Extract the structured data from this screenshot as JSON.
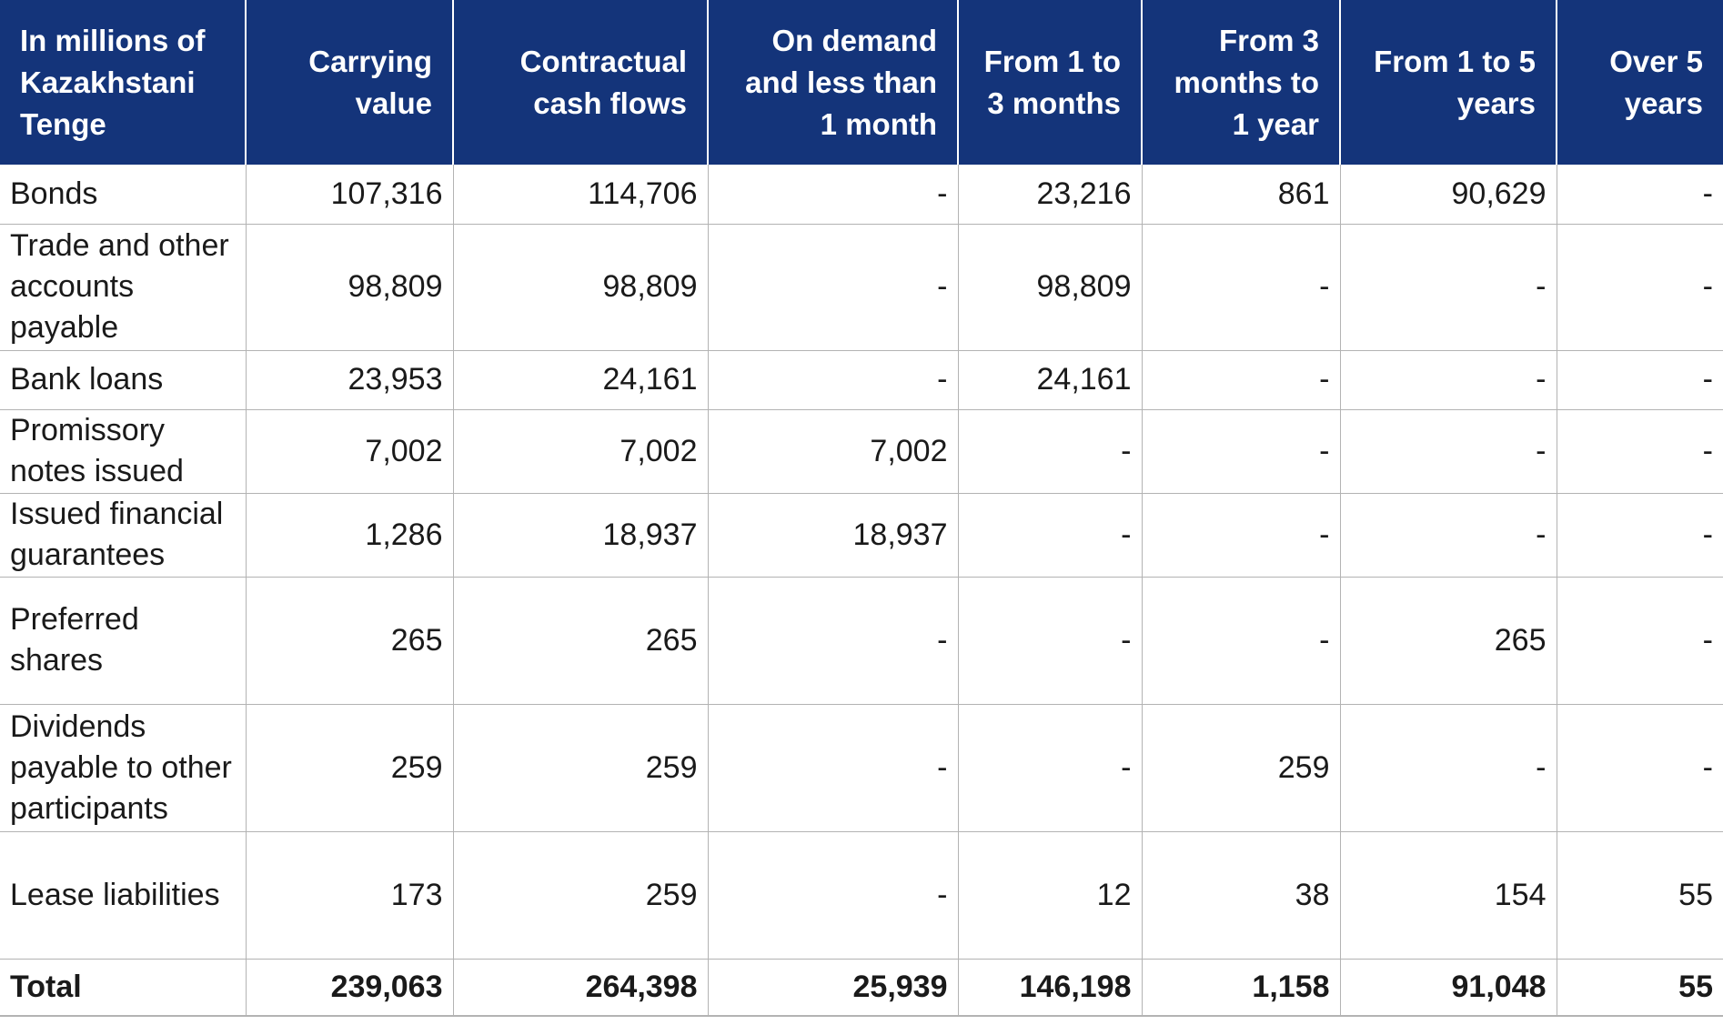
{
  "table": {
    "headers": [
      "In millions of Kazakhstani Tenge",
      "Carrying value",
      "Contractual cash flows",
      "On demand and less than 1 month",
      "From 1 to 3 months",
      "From 3 months to 1 year",
      "From 1 to 5 years",
      "Over 5 years"
    ],
    "rows": [
      {
        "label": "Bonds",
        "values": [
          "107,316",
          "114,706",
          "-",
          "23,216",
          "861",
          "90,629",
          "-"
        ]
      },
      {
        "label": "Trade and other accounts payable",
        "values": [
          "98,809",
          "98,809",
          "-",
          "98,809",
          "-",
          "-",
          "-"
        ]
      },
      {
        "label": "Bank loans",
        "values": [
          "23,953",
          "24,161",
          "-",
          "24,161",
          "-",
          "-",
          "-"
        ]
      },
      {
        "label": "Promissory notes issued",
        "values": [
          "7,002",
          "7,002",
          "7,002",
          "-",
          "-",
          "-",
          "-"
        ]
      },
      {
        "label": "Issued financial guarantees",
        "values": [
          "1,286",
          "18,937",
          "18,937",
          "-",
          "-",
          "-",
          "-"
        ]
      },
      {
        "label": "Preferred shares",
        "values": [
          "265",
          "265",
          "-",
          "-",
          "-",
          "265",
          "-"
        ]
      },
      {
        "label": "Dividends payable to other participants",
        "values": [
          "259",
          "259",
          "-",
          "-",
          "259",
          "-",
          "-"
        ]
      },
      {
        "label": "Lease liabilities",
        "values": [
          "173",
          "259",
          "-",
          "12",
          "38",
          "154",
          "55"
        ]
      }
    ],
    "total": {
      "label": "Total",
      "values": [
        "239,063",
        "264,398",
        "25,939",
        "146,198",
        "1,158",
        "91,048",
        "55"
      ]
    }
  },
  "colors": {
    "header_bg": "#14347a",
    "header_text": "#ffffff",
    "grid": "#b3b3b3"
  }
}
